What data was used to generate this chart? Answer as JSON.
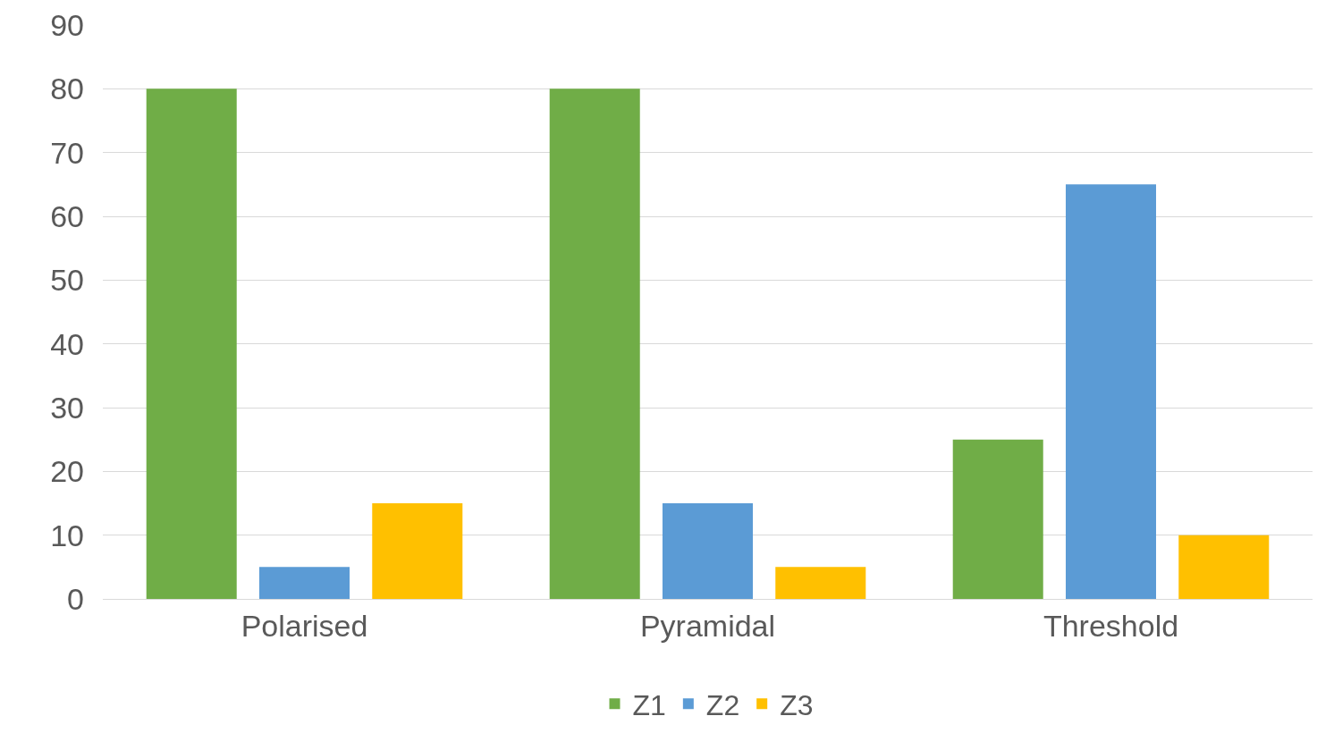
{
  "chart_data": {
    "type": "bar",
    "categories": [
      "Polarised",
      "Pyramidal",
      "Threshold"
    ],
    "series": [
      {
        "name": "Z1",
        "color": "#70ad47",
        "values": [
          80,
          80,
          25
        ]
      },
      {
        "name": "Z2",
        "color": "#5b9bd5",
        "values": [
          5,
          15,
          65
        ]
      },
      {
        "name": "Z3",
        "color": "#ffc000",
        "values": [
          15,
          5,
          10
        ]
      }
    ],
    "ylim": [
      0,
      90
    ],
    "yticks": [
      0,
      10,
      20,
      30,
      40,
      50,
      60,
      70,
      80,
      90
    ],
    "grid": "y",
    "legend": "bottom"
  }
}
